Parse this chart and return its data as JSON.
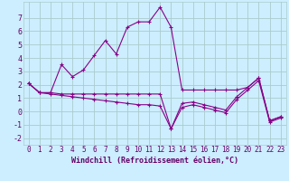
{
  "title": "",
  "xlabel": "Windchill (Refroidissement éolien,°C)",
  "background_color": "#cceeff",
  "grid_color": "#aacccc",
  "line_color": "#880088",
  "xlim": [
    -0.5,
    23.5
  ],
  "ylim": [
    -2.5,
    8.2
  ],
  "yticks": [
    -2,
    -1,
    0,
    1,
    2,
    3,
    4,
    5,
    6,
    7
  ],
  "xticks": [
    0,
    1,
    2,
    3,
    4,
    5,
    6,
    7,
    8,
    9,
    10,
    11,
    12,
    13,
    14,
    15,
    16,
    17,
    18,
    19,
    20,
    21,
    22,
    23
  ],
  "series1_x": [
    0,
    1,
    2,
    3,
    4,
    5,
    6,
    7,
    8,
    9,
    10,
    11,
    12,
    13,
    14,
    15,
    16,
    17,
    18,
    19,
    20,
    21,
    22,
    23
  ],
  "series1_y": [
    2.1,
    1.4,
    1.4,
    3.5,
    2.6,
    3.1,
    4.2,
    5.3,
    4.3,
    6.3,
    6.7,
    6.7,
    7.8,
    6.3,
    1.6,
    1.6,
    1.6,
    1.6,
    1.6,
    1.6,
    1.8,
    2.5,
    -0.7,
    -0.4
  ],
  "series2_x": [
    0,
    1,
    2,
    3,
    4,
    5,
    6,
    7,
    8,
    9,
    10,
    11,
    12,
    13,
    14,
    15,
    16,
    17,
    18,
    19,
    20,
    21,
    22,
    23
  ],
  "series2_y": [
    2.1,
    1.4,
    1.4,
    1.3,
    1.3,
    1.3,
    1.3,
    1.3,
    1.3,
    1.3,
    1.3,
    1.3,
    1.3,
    -1.3,
    0.6,
    0.7,
    0.5,
    0.3,
    0.1,
    1.1,
    1.8,
    2.5,
    -0.7,
    -0.4
  ],
  "series3_x": [
    0,
    1,
    2,
    3,
    4,
    5,
    6,
    7,
    8,
    9,
    10,
    11,
    12,
    13,
    14,
    15,
    16,
    17,
    18,
    19,
    20,
    21,
    22,
    23
  ],
  "series3_y": [
    2.1,
    1.4,
    1.3,
    1.2,
    1.1,
    1.0,
    0.9,
    0.8,
    0.7,
    0.6,
    0.5,
    0.5,
    0.4,
    -1.3,
    0.3,
    0.5,
    0.3,
    0.1,
    -0.1,
    0.9,
    1.6,
    2.3,
    -0.8,
    -0.5
  ],
  "tick_label_color": "#660066",
  "tick_fontsize": 5.5,
  "xlabel_fontsize": 6.0
}
